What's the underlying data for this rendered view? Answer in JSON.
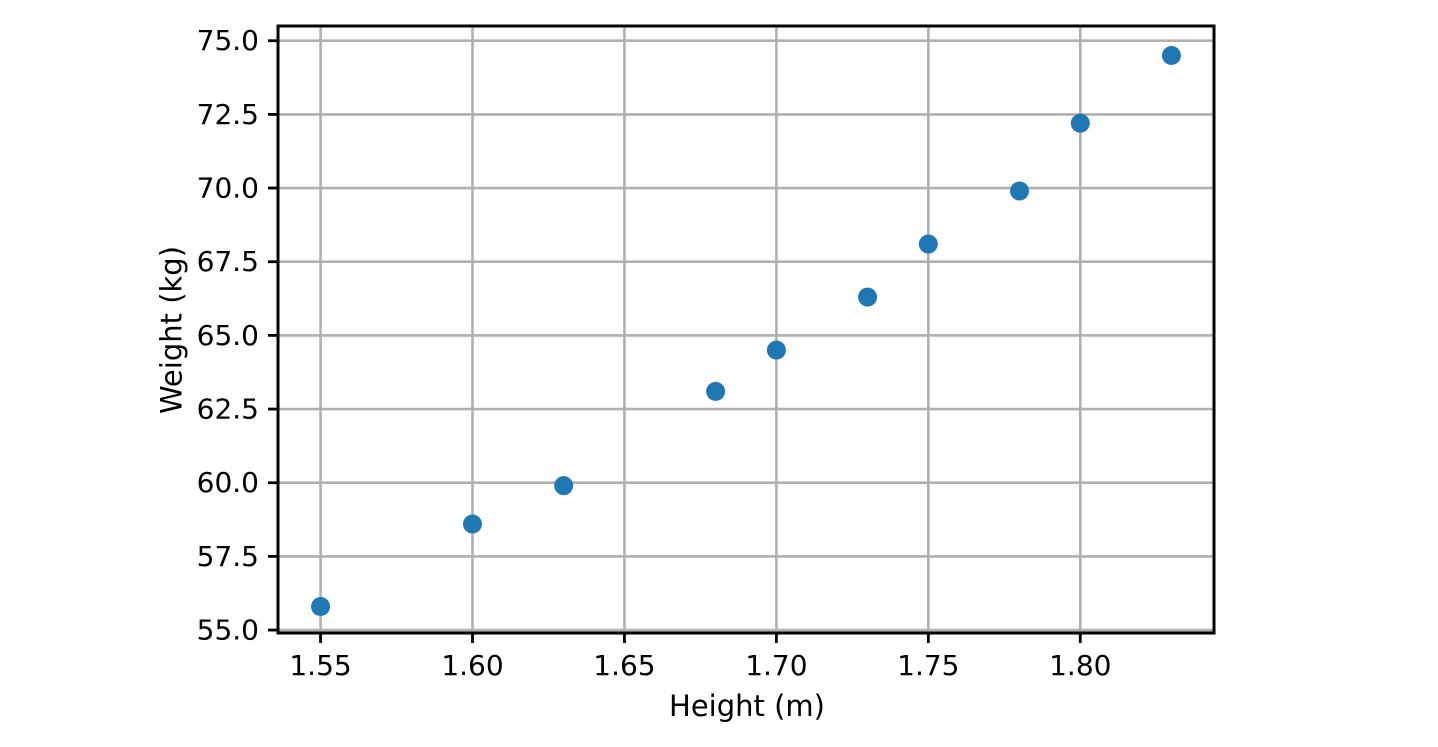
{
  "figure": {
    "background_color": "#ffffff"
  },
  "chart_data": {
    "type": "scatter",
    "title": "",
    "xlabel": "Height (m)",
    "ylabel": "Weight (kg)",
    "x": [
      1.55,
      1.6,
      1.63,
      1.68,
      1.7,
      1.73,
      1.75,
      1.78,
      1.8,
      1.83
    ],
    "y": [
      55.8,
      58.6,
      59.9,
      63.1,
      64.5,
      66.3,
      68.1,
      69.9,
      72.2,
      74.5
    ],
    "xlim": [
      1.536,
      1.844
    ],
    "ylim": [
      54.9,
      75.5
    ],
    "x_tick_values": [
      1.55,
      1.6,
      1.65,
      1.7,
      1.75,
      1.8
    ],
    "x_tick_labels": [
      "1.55",
      "1.60",
      "1.65",
      "1.70",
      "1.75",
      "1.80"
    ],
    "y_tick_values": [
      55.0,
      57.5,
      60.0,
      62.5,
      65.0,
      67.5,
      70.0,
      72.5,
      75.0
    ],
    "y_tick_labels": [
      "55.0",
      "57.5",
      "60.0",
      "62.5",
      "65.0",
      "67.5",
      "70.0",
      "72.5",
      "75.0"
    ],
    "grid": true,
    "legend": false,
    "marker_color": "#1f77b4",
    "marker_radius_px": 9.5,
    "grid_color": "#b0b0b0",
    "spine_color": "#000000",
    "tick_color": "#000000"
  }
}
